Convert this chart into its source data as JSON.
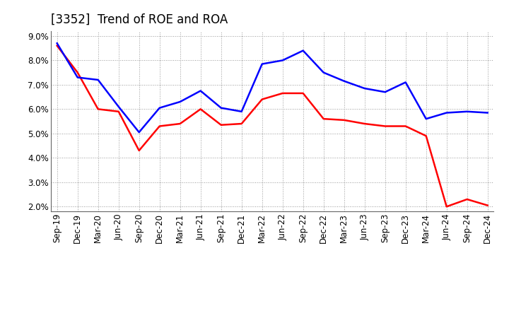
{
  "title": "[3352]  Trend of ROE and ROA",
  "labels": [
    "Sep-19",
    "Dec-19",
    "Mar-20",
    "Jun-20",
    "Sep-20",
    "Dec-20",
    "Mar-21",
    "Jun-21",
    "Sep-21",
    "Dec-21",
    "Mar-22",
    "Jun-22",
    "Sep-22",
    "Dec-22",
    "Mar-23",
    "Jun-23",
    "Sep-23",
    "Dec-23",
    "Mar-24",
    "Jun-24",
    "Sep-24",
    "Dec-24"
  ],
  "ROE": [
    8.6,
    7.5,
    6.0,
    5.9,
    4.3,
    5.3,
    5.4,
    6.0,
    5.35,
    5.4,
    6.4,
    6.65,
    6.65,
    5.6,
    5.55,
    5.4,
    5.3,
    5.3,
    4.9,
    2.0,
    2.3,
    2.05
  ],
  "ROA": [
    8.7,
    7.3,
    7.2,
    6.1,
    5.05,
    6.05,
    6.3,
    6.75,
    6.05,
    5.9,
    7.85,
    8.0,
    8.4,
    7.5,
    7.15,
    6.85,
    6.7,
    7.1,
    5.6,
    5.85,
    5.9,
    5.85
  ],
  "roe_color": "#FF0000",
  "roa_color": "#0000FF",
  "background_color": "#FFFFFF",
  "plot_bg_color": "#FFFFFF",
  "grid_color": "#999999",
  "ylim": [
    1.8,
    9.2
  ],
  "yticks": [
    2.0,
    3.0,
    4.0,
    5.0,
    6.0,
    7.0,
    8.0,
    9.0
  ],
  "title_fontsize": 12,
  "legend_fontsize": 10,
  "tick_fontsize": 8.5,
  "linewidth": 1.8
}
